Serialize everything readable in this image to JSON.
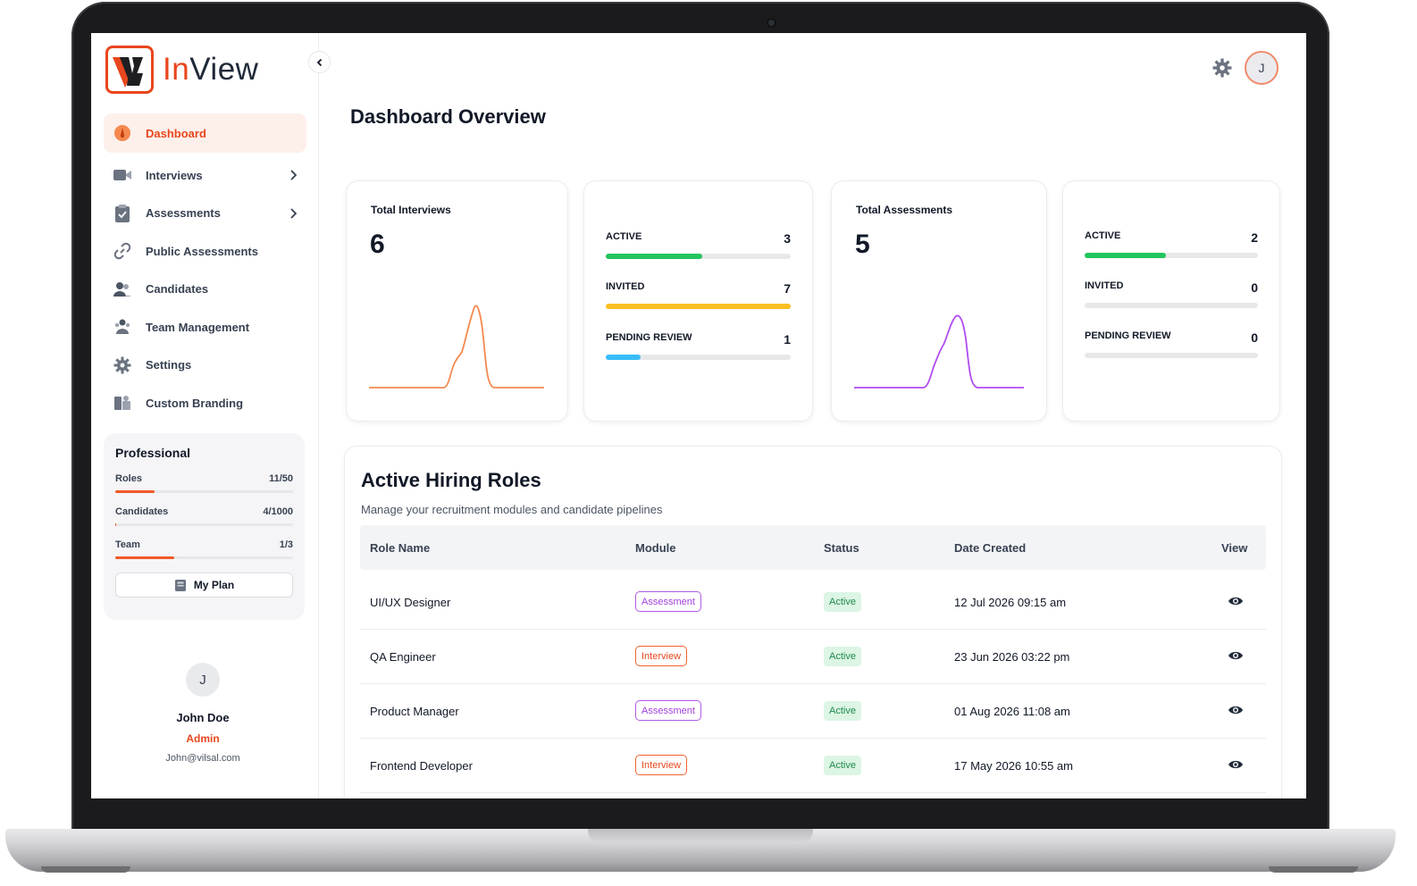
{
  "app": {
    "logo_text_accent": "In",
    "logo_text_rest": "View",
    "brand_color": "#e8461d"
  },
  "sidebar": {
    "items": [
      {
        "label": "Dashboard",
        "icon": "dashboard-gauge-icon",
        "active": true
      },
      {
        "label": "Interviews",
        "icon": "video-camera-icon",
        "has_submenu": true
      },
      {
        "label": "Assessments",
        "icon": "clipboard-check-icon",
        "has_submenu": true
      },
      {
        "label": "Public Assessments",
        "icon": "link-icon"
      },
      {
        "label": "Candidates",
        "icon": "users-icon"
      },
      {
        "label": "Team Management",
        "icon": "team-icon"
      },
      {
        "label": "Settings",
        "icon": "gear-icon"
      },
      {
        "label": "Custom Branding",
        "icon": "branding-icon"
      }
    ]
  },
  "plan": {
    "title": "Professional",
    "rows": [
      {
        "label": "Roles",
        "value": "11/50",
        "fraction": 0.22
      },
      {
        "label": "Candidates",
        "value": "4/1000",
        "fraction": 0.004
      },
      {
        "label": "Team",
        "value": "1/3",
        "fraction": 0.333
      }
    ],
    "button_label": "My Plan"
  },
  "profile": {
    "initial": "J",
    "name": "John Doe",
    "role": "Admin",
    "email": "John@vilsal.com"
  },
  "header": {
    "avatar_initial": "J"
  },
  "page": {
    "title": "Dashboard Overview"
  },
  "stats": {
    "interviews": {
      "label": "Total Interviews",
      "value": "6",
      "sparkline_color": "#f5894f",
      "breakdown": [
        {
          "label": "ACTIVE",
          "value": "3",
          "fraction": 0.52,
          "color": "#22c55e"
        },
        {
          "label": "INVITED",
          "value": "7",
          "fraction": 1.0,
          "color": "#fbbf24"
        },
        {
          "label": "PENDING REVIEW",
          "value": "1",
          "fraction": 0.19,
          "color": "#38bdf8"
        }
      ]
    },
    "assessments": {
      "label": "Total Assessments",
      "value": "5",
      "sparkline_color": "#b04cf0",
      "breakdown": [
        {
          "label": "ACTIVE",
          "value": "2",
          "fraction": 0.47,
          "color": "#22c55e"
        },
        {
          "label": "INVITED",
          "value": "0",
          "fraction": 0,
          "color": "#fbbf24"
        },
        {
          "label": "PENDING REVIEW",
          "value": "0",
          "fraction": 0,
          "color": "#38bdf8"
        }
      ]
    }
  },
  "roles": {
    "title": "Active Hiring Roles",
    "subtitle": "Manage your recruitment modules and candidate pipelines",
    "columns": [
      "Role Name",
      "Module",
      "Status",
      "Date Created",
      "View"
    ],
    "rows": [
      {
        "role": "UI/UX Designer",
        "module": "Assessment",
        "status": "Active",
        "date": "12 Jul 2026 09:15 am"
      },
      {
        "role": "QA Engineer",
        "module": "Interview",
        "status": "Active",
        "date": "23 Jun 2026 03:22 pm"
      },
      {
        "role": "Product Manager",
        "module": "Assessment",
        "status": "Active",
        "date": "01 Aug 2026 11:08 am"
      },
      {
        "role": "Frontend Developer",
        "module": "Interview",
        "status": "Active",
        "date": "17 May 2026 10:55 am"
      }
    ]
  }
}
